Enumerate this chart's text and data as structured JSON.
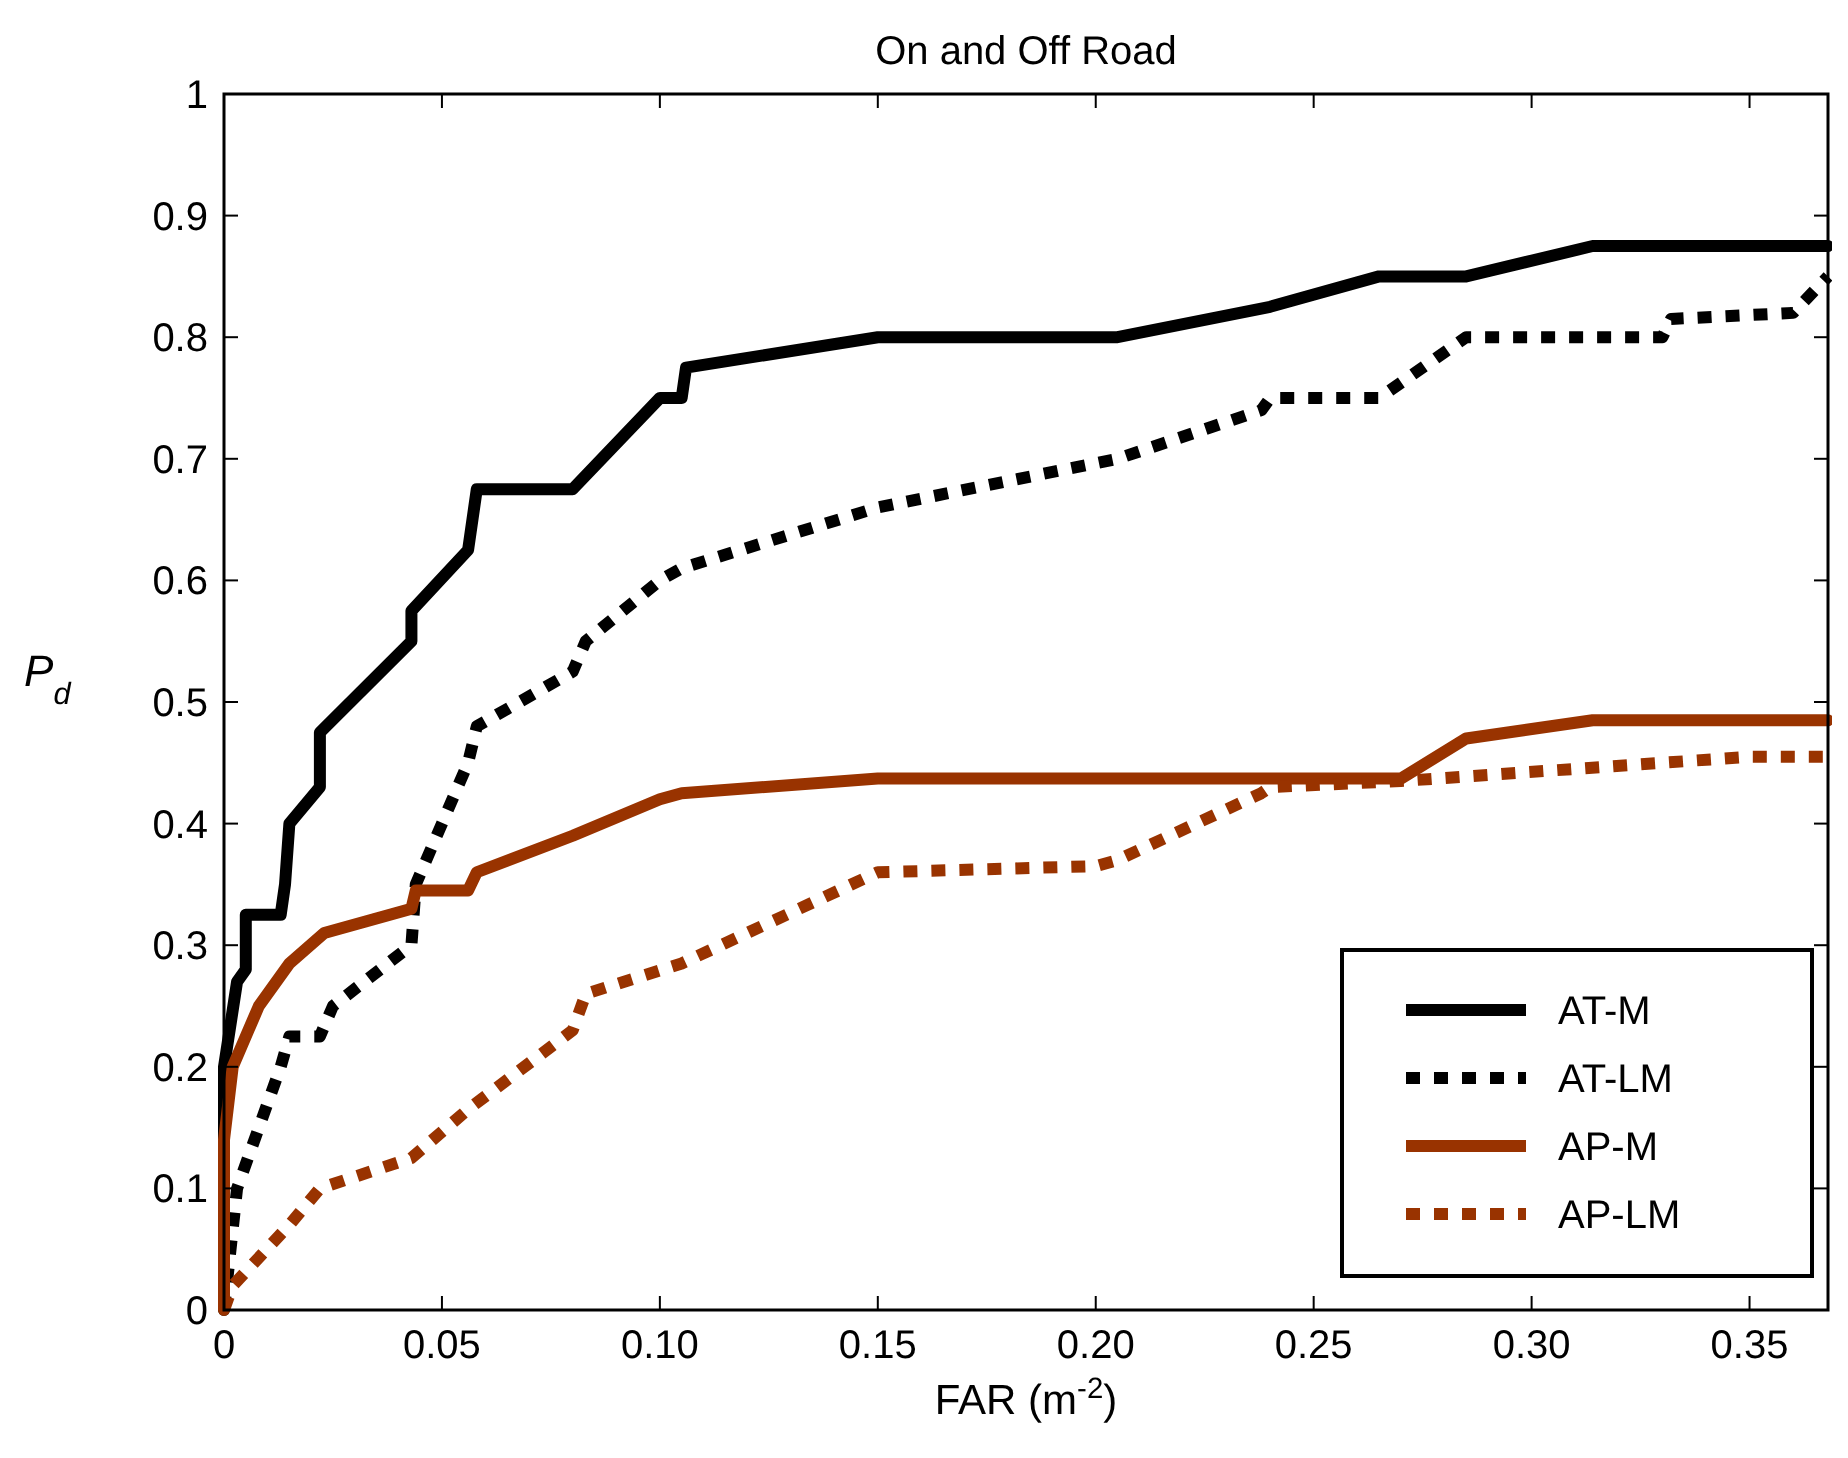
{
  "chart_data": {
    "type": "line",
    "title": "On and Off Road",
    "xlabel": "FAR (m$^{-2}$)",
    "ylabel": "P$_{d}$",
    "xlim": [
      0,
      0.368
    ],
    "ylim": [
      0,
      1
    ],
    "xticks": [
      0,
      {
        "value": 0.05,
        "label": "0.05"
      },
      {
        "value": 0.1,
        "label": "0.10"
      },
      {
        "value": 0.15,
        "label": "0.15"
      },
      {
        "value": 0.2,
        "label": "0.20"
      },
      {
        "value": 0.25,
        "label": "0.25"
      },
      {
        "value": 0.3,
        "label": "0.30"
      },
      {
        "value": 0.35,
        "label": "0.35"
      }
    ],
    "yticks": [
      0,
      0.1,
      0.2,
      0.3,
      0.4,
      0.5,
      0.6,
      0.7,
      0.8,
      0.9,
      1
    ],
    "grid": false,
    "legend": "bottom right",
    "series": [
      {
        "name": "AT-M",
        "color": "#000000",
        "line_style": "solid",
        "x": [
          0,
          0,
          0.003,
          0.005,
          0.005,
          0.013,
          0.014,
          0.015,
          0.022,
          0.022,
          0.043,
          0.043,
          0.056,
          0.058,
          0.08,
          0.1,
          0.105,
          0.106,
          0.15,
          0.205,
          0.24,
          0.265,
          0.285,
          0.314,
          0.368
        ],
        "values": [
          0,
          0.2,
          0.27,
          0.28,
          0.325,
          0.325,
          0.35,
          0.4,
          0.43,
          0.475,
          0.55,
          0.575,
          0.625,
          0.675,
          0.675,
          0.75,
          0.75,
          0.775,
          0.8,
          0.8,
          0.825,
          0.85,
          0.85,
          0.875,
          0.875
        ]
      },
      {
        "name": "AT-LM",
        "color": "#000000",
        "line_style": "dotted",
        "x": [
          0,
          0.003,
          0.013,
          0.015,
          0.022,
          0.025,
          0.043,
          0.044,
          0.056,
          0.058,
          0.08,
          0.083,
          0.1,
          0.105,
          0.15,
          0.205,
          0.238,
          0.24,
          0.265,
          0.285,
          0.33,
          0.332,
          0.36,
          0.368
        ],
        "values": [
          0,
          0.1,
          0.2,
          0.225,
          0.225,
          0.25,
          0.3,
          0.35,
          0.45,
          0.48,
          0.525,
          0.55,
          0.6,
          0.61,
          0.66,
          0.7,
          0.74,
          0.75,
          0.75,
          0.8,
          0.8,
          0.815,
          0.82,
          0.85
        ]
      },
      {
        "name": "AP-M",
        "color": "#993300",
        "line_style": "solid",
        "x": [
          0,
          0,
          0.002,
          0.008,
          0.015,
          0.023,
          0.043,
          0.044,
          0.056,
          0.058,
          0.08,
          0.1,
          0.105,
          0.15,
          0.27,
          0.285,
          0.314,
          0.368
        ],
        "values": [
          0,
          0.14,
          0.2,
          0.25,
          0.285,
          0.31,
          0.33,
          0.345,
          0.345,
          0.36,
          0.39,
          0.42,
          0.425,
          0.437,
          0.437,
          0.47,
          0.485,
          0.485
        ]
      },
      {
        "name": "AP-LM",
        "color": "#993300",
        "line_style": "dotted",
        "x": [
          0,
          0.002,
          0.015,
          0.022,
          0.043,
          0.056,
          0.08,
          0.083,
          0.105,
          0.15,
          0.2,
          0.205,
          0.238,
          0.24,
          0.27,
          0.31,
          0.33,
          0.35,
          0.368
        ],
        "values": [
          0,
          0.02,
          0.07,
          0.1,
          0.125,
          0.165,
          0.23,
          0.26,
          0.285,
          0.36,
          0.365,
          0.37,
          0.425,
          0.43,
          0.435,
          0.445,
          0.45,
          0.455,
          0.455
        ]
      }
    ]
  }
}
